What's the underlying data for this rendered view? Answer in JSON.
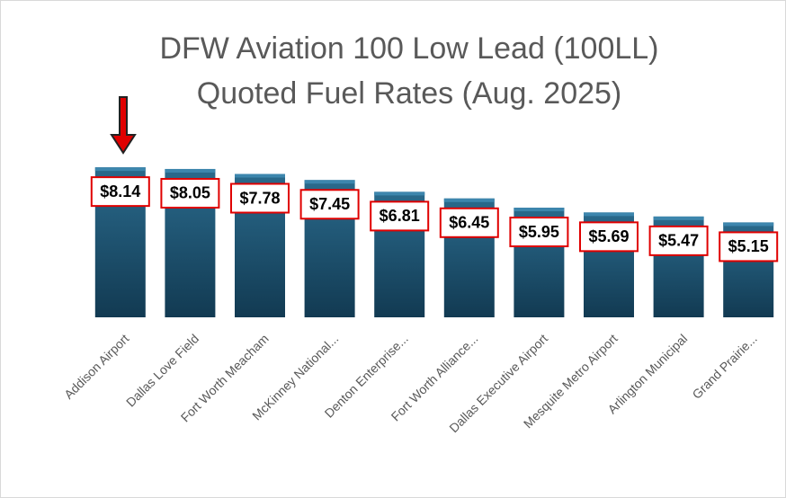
{
  "chart_data": {
    "type": "bar",
    "title": [
      "DFW Aviation 100 Low Lead (100LL)",
      "Quoted Fuel Rates (Aug. 2025)"
    ],
    "categories": [
      "Addison Airport",
      "Dallas Love Field",
      "Fort Worth Meacham",
      "McKinney National...",
      "Denton Enterprise...",
      "Fort Worth Alliance...",
      "Dallas Executive Airport",
      "Mesquite Metro Airport",
      "Arlington Municipal",
      "Grand Prairie..."
    ],
    "values": [
      8.14,
      8.05,
      7.78,
      7.45,
      6.81,
      6.45,
      5.95,
      5.69,
      5.47,
      5.15
    ],
    "value_labels": [
      "$8.14",
      "$8.05",
      "$7.78",
      "$7.45",
      "$6.81",
      "$6.45",
      "$5.95",
      "$5.69",
      "$5.47",
      "$5.15"
    ],
    "color": "#1b4f6e",
    "ylim": [
      0,
      10
    ]
  }
}
